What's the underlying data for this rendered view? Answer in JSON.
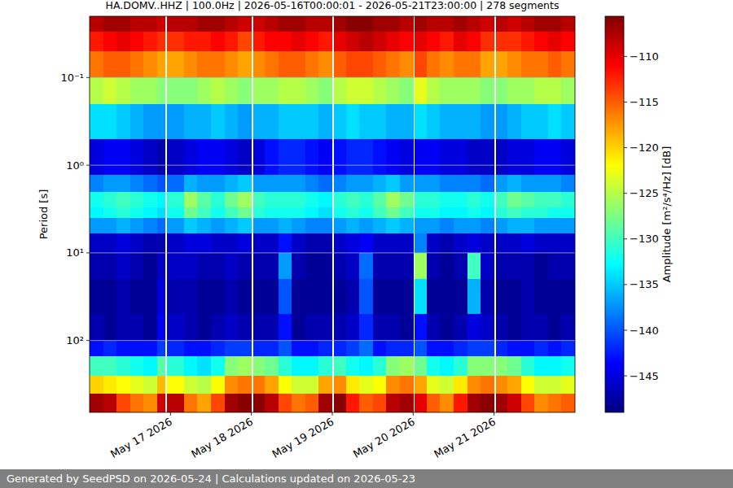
{
  "chart_data": {
    "type": "heatmap",
    "title": "HA.DOMV..HHZ | 100.0Hz | 2026-05-16T00:00:01 - 2026-05-21T23:00:00 | 278 segments",
    "ylabel": "Period [s]",
    "colorbar_label": "Amplitude [m²/s⁴/Hz] [dB]",
    "footer": "Generated by SeedPSD on 2026-05-24 | Calculations updated on 2026-05-23",
    "log": "y",
    "grid": "y",
    "xlim": [
      16,
      22
    ],
    "xticks": [
      {
        "value": 17,
        "label": "May 17 2026"
      },
      {
        "value": 18,
        "label": "May 18 2026"
      },
      {
        "value": 19,
        "label": "May 19 2026"
      },
      {
        "value": 20,
        "label": "May 20 2026"
      },
      {
        "value": 21,
        "label": "May 21 2026"
      }
    ],
    "ylim": [
      660,
      0.02
    ],
    "yticks": [
      {
        "value": 0.1,
        "label": "10⁻¹"
      },
      {
        "value": 1,
        "label": "10⁰"
      },
      {
        "value": 10,
        "label": "10¹"
      },
      {
        "value": 100,
        "label": "10²"
      }
    ],
    "colorbar_lim": [
      -149,
      -105.6
    ],
    "colorbar_ticks": [
      {
        "value": -145,
        "label": "−145"
      },
      {
        "value": -140,
        "label": "−140"
      },
      {
        "value": -135,
        "label": "−135"
      },
      {
        "value": -130,
        "label": "−130"
      },
      {
        "value": -125,
        "label": "−125"
      },
      {
        "value": -120,
        "label": "−120"
      },
      {
        "value": -115,
        "label": "−115"
      },
      {
        "value": -110,
        "label": "−110"
      }
    ],
    "x_edges": [
      16,
      16.167,
      16.333,
      16.5,
      16.667,
      16.833,
      16.93,
      16.96,
      17.167,
      17.333,
      17.5,
      17.667,
      17.833,
      18,
      18.02,
      18.167,
      18.333,
      18.5,
      18.667,
      18.833,
      19,
      19.02,
      19.167,
      19.333,
      19.5,
      19.667,
      19.833,
      20,
      20.02,
      20.167,
      20.333,
      20.5,
      20.667,
      20.833,
      21,
      21.02,
      21.167,
      21.333,
      21.5,
      21.667,
      21.833,
      22
    ],
    "y_edges": [
      0.02,
      0.03,
      0.05,
      0.1,
      0.2,
      0.5,
      1.3,
      2,
      3,
      4,
      6,
      10,
      20,
      50,
      100,
      150,
      250,
      400,
      660
    ],
    "values": [
      [
        -108,
        -107,
        -107,
        -108,
        -108,
        -109,
        null,
        -108,
        -108,
        -107,
        -107,
        -108,
        -109,
        null,
        -109,
        -108,
        -107,
        -107,
        -108,
        -108,
        null,
        -107,
        -106,
        -106,
        -107,
        -107,
        -108,
        null,
        -107,
        -108,
        -108,
        -107,
        -108,
        -109,
        null,
        -108,
        -109,
        -108,
        -107,
        -107,
        -108
      ],
      [
        -112,
        -111,
        -110,
        -111,
        -112,
        -113,
        null,
        -113,
        -112,
        -112,
        -111,
        -112,
        -114,
        null,
        -112,
        -111,
        -111,
        -110,
        -111,
        -112,
        null,
        -110,
        -109,
        -108,
        -109,
        -110,
        -111,
        null,
        -110,
        -111,
        -112,
        -110,
        -111,
        -113,
        null,
        -113,
        -113,
        -112,
        -111,
        -110,
        -111
      ],
      [
        -116,
        -115,
        -115,
        -116,
        -117,
        -118,
        null,
        -118,
        -117,
        -116,
        -116,
        -117,
        -118,
        null,
        -117,
        -116,
        -115,
        -115,
        -116,
        -117,
        null,
        -115,
        -114,
        -114,
        -115,
        -116,
        -117,
        null,
        -114,
        -116,
        -117,
        -116,
        -116,
        -118,
        null,
        -118,
        -117,
        -116,
        -116,
        -115,
        -116
      ],
      [
        -125,
        -124,
        -125,
        -126,
        -126,
        -127,
        null,
        -127,
        -127,
        -126,
        -125,
        -126,
        -127,
        null,
        -126,
        -126,
        -125,
        -125,
        -126,
        -127,
        null,
        -125,
        -124,
        -124,
        -125,
        -126,
        -127,
        null,
        -123,
        -125,
        -126,
        -126,
        -126,
        -127,
        null,
        -127,
        -126,
        -126,
        -125,
        -125,
        -126
      ],
      [
        -134,
        -134,
        -135,
        -136,
        -137,
        -137,
        null,
        -137,
        -136,
        -136,
        -135,
        -136,
        -137,
        null,
        -136,
        -136,
        -135,
        -135,
        -135,
        -136,
        null,
        -135,
        -134,
        -135,
        -135,
        -136,
        -136,
        null,
        -134,
        -135,
        -136,
        -136,
        -136,
        -137,
        null,
        -137,
        -136,
        -135,
        -135,
        -134,
        -135
      ],
      [
        -145,
        -144,
        -144,
        -145,
        -146,
        -147,
        null,
        -146,
        -145,
        -144,
        -144,
        -145,
        -146,
        null,
        -145,
        -143,
        -142,
        -142,
        -143,
        -144,
        null,
        -143,
        -142,
        -142,
        -143,
        -144,
        -145,
        null,
        -144,
        -144,
        -145,
        -145,
        -146,
        -146,
        null,
        -146,
        -145,
        -145,
        -144,
        -144,
        -145
      ],
      [
        -138,
        -137,
        -137,
        -138,
        -139,
        -140,
        null,
        -139,
        -136,
        -137,
        -137,
        -136,
        -135,
        null,
        -137,
        -137,
        -137,
        -137,
        -138,
        -139,
        null,
        -138,
        -137,
        -137,
        -136,
        -135,
        -137,
        null,
        -137,
        -137,
        -138,
        -138,
        -138,
        -139,
        null,
        -137,
        -136,
        -137,
        -137,
        -137,
        -138
      ],
      [
        -132,
        -131,
        -130,
        -131,
        -132,
        -133,
        null,
        -131,
        -126,
        -129,
        -131,
        -128,
        -126,
        null,
        -130,
        -131,
        -131,
        -131,
        -132,
        -133,
        null,
        -131,
        -130,
        -131,
        -129,
        -126,
        -128,
        null,
        -131,
        -131,
        -132,
        -132,
        -131,
        -132,
        null,
        -130,
        -128,
        -129,
        -130,
        -130,
        -131
      ],
      [
        -133,
        -132,
        -131,
        -132,
        -133,
        -134,
        null,
        -132,
        -128,
        -130,
        -132,
        -130,
        -128,
        null,
        -131,
        -132,
        -132,
        -132,
        -133,
        -134,
        null,
        -132,
        -131,
        -132,
        -130,
        -128,
        -130,
        null,
        -132,
        -132,
        -133,
        -133,
        -132,
        -133,
        null,
        -131,
        -130,
        -131,
        -131,
        -132,
        -132
      ],
      [
        -137,
        -137,
        -136,
        -137,
        -138,
        -139,
        null,
        -137,
        -135,
        -136,
        -137,
        -136,
        -135,
        null,
        -137,
        -137,
        -136,
        -137,
        -138,
        -138,
        null,
        -137,
        -136,
        -137,
        -136,
        -135,
        -136,
        null,
        -137,
        -137,
        -138,
        -137,
        -137,
        -138,
        null,
        -137,
        -136,
        -136,
        -137,
        -137,
        -137
      ],
      [
        -146,
        -146,
        -145,
        -146,
        -147,
        -147,
        null,
        -146,
        -145,
        -145,
        -146,
        -146,
        -145,
        null,
        -146,
        -146,
        -143,
        -146,
        -147,
        -147,
        null,
        -146,
        -145,
        -144,
        -146,
        -146,
        -146,
        null,
        -138,
        -146,
        -147,
        -146,
        -145,
        -146,
        null,
        -146,
        -146,
        -145,
        -146,
        -146,
        -146
      ],
      [
        -147,
        -147,
        -146,
        -147,
        -148,
        -146,
        null,
        -146,
        -146,
        -147,
        -147,
        -146,
        -147,
        null,
        -147,
        -147,
        -137,
        -147,
        -148,
        -148,
        null,
        -147,
        -146,
        -139,
        -147,
        -147,
        -147,
        null,
        -126,
        -147,
        -148,
        -147,
        -130,
        -146,
        null,
        -147,
        -147,
        -147,
        -148,
        -147,
        -147
      ],
      [
        -148,
        -148,
        -147,
        -148,
        -148,
        -145,
        null,
        -147,
        -147,
        -148,
        -148,
        -147,
        -148,
        null,
        -148,
        -148,
        -140,
        -148,
        -148,
        -148,
        null,
        -148,
        -147,
        -140,
        -148,
        -148,
        -148,
        null,
        -134,
        -148,
        -148,
        -148,
        -136,
        -147,
        null,
        -148,
        -148,
        -147,
        -148,
        -148,
        -148
      ],
      [
        -147,
        -148,
        -147,
        -147,
        -148,
        -144,
        null,
        -146,
        -147,
        -148,
        -147,
        -146,
        -147,
        null,
        -147,
        -147,
        -143,
        -148,
        -147,
        -147,
        null,
        -147,
        -146,
        -142,
        -147,
        -147,
        -148,
        null,
        -143,
        -147,
        -148,
        -147,
        -145,
        -146,
        null,
        -147,
        -148,
        -147,
        -147,
        -148,
        -147
      ],
      [
        -143,
        -142,
        -143,
        -143,
        -143,
        -141,
        null,
        -142,
        -143,
        -143,
        -142,
        -141,
        -141,
        null,
        -142,
        -142,
        -140,
        -143,
        -143,
        -142,
        null,
        -142,
        -141,
        -139,
        -143,
        -142,
        -142,
        null,
        -140,
        -143,
        -143,
        -142,
        -141,
        -141,
        null,
        -142,
        -143,
        -143,
        -142,
        -143,
        -142
      ],
      [
        -130,
        -130,
        -131,
        -132,
        -133,
        -129,
        null,
        -131,
        -133,
        -134,
        -132,
        -127,
        -126,
        null,
        -127,
        -128,
        -131,
        -133,
        -133,
        -131,
        null,
        -130,
        -132,
        -133,
        -131,
        -127,
        -126,
        null,
        -128,
        -132,
        -133,
        -131,
        -127,
        -127,
        null,
        -127,
        -128,
        -131,
        -133,
        -133,
        -132
      ],
      [
        -120,
        -121,
        -122,
        -123,
        -124,
        -119,
        null,
        -122,
        -124,
        -125,
        -122,
        -117,
        -116,
        null,
        -116,
        -118,
        -122,
        -124,
        -124,
        -118,
        null,
        -117,
        -121,
        -123,
        -122,
        -117,
        -116,
        null,
        -118,
        -123,
        -124,
        -121,
        -117,
        -116,
        null,
        -117,
        -118,
        -122,
        -124,
        -124,
        -123
      ],
      [
        -107,
        -108,
        -114,
        -116,
        -117,
        -109,
        null,
        -108,
        -116,
        -118,
        -114,
        -107,
        -106,
        null,
        -106,
        -108,
        -114,
        -116,
        -115,
        -107,
        null,
        -106,
        -112,
        -115,
        -114,
        -108,
        -107,
        null,
        -110,
        -115,
        -117,
        -112,
        -107,
        -106,
        null,
        -107,
        -109,
        -114,
        -117,
        -116,
        -115
      ]
    ]
  }
}
